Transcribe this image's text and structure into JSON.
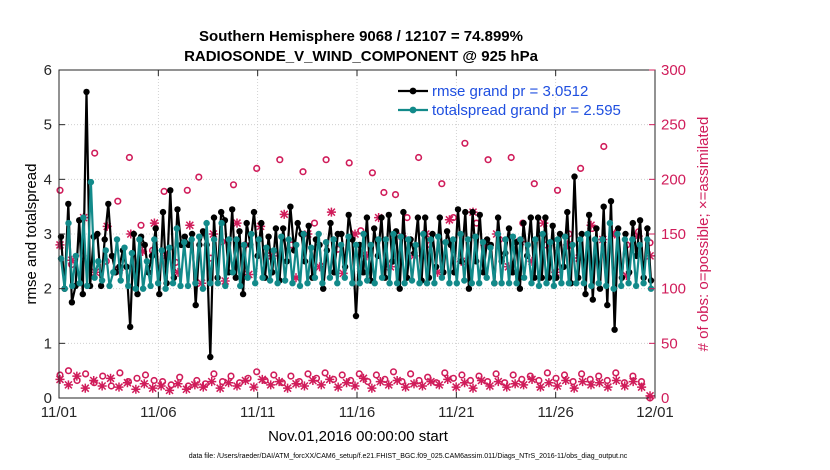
{
  "chart_data": {
    "type": "line",
    "title": "Southern Hemisphere 9068 / 12107 = 74.899%",
    "subtitle": "RADIOSONDE_V_WIND_COMPONENT @ 925 hPa",
    "xlabel": "Nov.01,2016 00:00:00 start",
    "ylabel": "rmse and totalspread",
    "y2label": "# of obs: o=possible; ×=assimilated",
    "footer": "data file: /Users/raeder/DAI/ATM_forcXX/CAM6_setup/f.e21.FHIST_BGC.f09_025.CAM6assim.011/Diags_NTrS_2016-11/obs_diag_output.nc",
    "x_range_days": [
      0,
      30
    ],
    "x_ticks": [
      0,
      5,
      10,
      15,
      20,
      25,
      30
    ],
    "x_tick_labels": [
      "11/01",
      "11/06",
      "11/11",
      "11/16",
      "11/21",
      "11/26",
      "12/01"
    ],
    "ylim": [
      0,
      6
    ],
    "y_ticks": [
      0,
      1,
      2,
      3,
      4,
      5,
      6
    ],
    "y2lim": [
      0,
      300
    ],
    "y2_ticks": [
      0,
      50,
      100,
      150,
      200,
      250,
      300
    ],
    "legend_position": "top-right",
    "colors": {
      "rmse": "#000000",
      "spread": "#128a8a",
      "obs": "#d01c5a"
    },
    "series": [
      {
        "name": "rmse",
        "legend": "rmse grand pr = 3.0512",
        "axis": "left",
        "values": [
          2.95,
          2.0,
          3.55,
          1.75,
          2.05,
          3.25,
          1.9,
          5.6,
          2.05,
          2.95,
          3.0,
          2.05,
          2.9,
          3.55,
          2.6,
          2.3,
          2.4,
          2.7,
          2.4,
          1.3,
          3.0,
          1.9,
          2.95,
          2.8,
          2.3,
          2.6,
          3.1,
          1.9,
          3.4,
          2.1,
          3.8,
          2.2,
          3.45,
          2.8,
          2.95,
          2.8,
          3.0,
          1.7,
          2.8,
          3.05,
          2.8,
          0.75,
          3.3,
          2.2,
          3.4,
          3.25,
          2.3,
          3.45,
          2.2,
          3.05,
          1.9,
          3.2,
          2.8,
          3.4,
          2.6,
          3.2,
          2.2,
          2.95,
          2.3,
          3.1,
          2.15,
          3.1,
          2.5,
          3.5,
          2.7,
          3.2,
          3.0,
          2.5,
          3.15,
          2.2,
          2.9,
          2.8,
          2.0,
          2.7,
          3.2,
          2.3,
          3.0,
          3.0,
          2.4,
          3.35,
          2.9,
          1.5,
          2.8,
          2.3,
          3.3,
          2.15,
          3.1,
          2.6,
          3.3,
          2.2,
          3.35,
          2.5,
          3.05,
          2.0,
          3.4,
          2.2,
          2.9,
          2.65,
          3.3,
          2.15,
          3.3,
          2.2,
          3.0,
          2.4,
          3.3,
          2.3,
          3.05,
          2.8,
          2.3,
          3.45,
          2.5,
          3.4,
          2.0,
          3.4,
          2.5,
          3.35,
          2.3,
          2.9,
          2.8,
          2.1,
          3.3,
          2.5,
          2.65,
          3.1,
          2.3,
          2.85,
          2.0,
          3.2,
          2.6,
          3.3,
          2.2,
          3.3,
          2.2,
          3.3,
          2.2,
          3.15,
          2.2,
          3.0,
          2.4,
          3.4,
          2.1,
          4.05,
          2.2,
          3.0,
          1.9,
          3.35,
          1.8,
          3.1,
          2.0,
          3.5,
          1.7,
          3.6,
          1.25,
          3.1,
          2.2,
          3.0,
          2.3,
          3.2,
          2.6,
          3.25,
          2.2,
          3.1,
          2.15
        ]
      },
      {
        "name": "totalspread",
        "legend": "totalspread grand pr = 2.595",
        "axis": "left",
        "values": [
          2.55,
          2.0,
          3.2,
          2.05,
          2.6,
          2.1,
          3.3,
          2.05,
          3.95,
          2.2,
          2.5,
          2.15,
          2.7,
          2.05,
          2.3,
          2.9,
          2.15,
          2.75,
          2.05,
          2.65,
          2.0,
          2.9,
          2.0,
          2.5,
          2.05,
          2.9,
          2.1,
          2.7,
          2.0,
          2.75,
          2.1,
          3.1,
          2.05,
          2.85,
          2.05,
          2.9,
          2.1,
          2.95,
          2.0,
          3.2,
          2.1,
          2.9,
          2.1,
          3.2,
          2.05,
          2.9,
          2.3,
          2.9,
          2.05,
          2.8,
          2.2,
          3.0,
          2.1,
          2.9,
          2.2,
          2.75,
          2.15,
          2.7,
          2.1,
          2.95,
          2.15,
          2.9,
          2.1,
          2.8,
          2.05,
          3.0,
          2.1,
          2.75,
          2.2,
          3.0,
          2.1,
          2.85,
          2.2,
          2.9,
          2.1,
          2.8,
          2.2,
          2.95,
          2.1,
          2.8,
          2.1,
          3.0,
          2.15,
          2.8,
          2.1,
          2.9,
          2.2,
          2.9,
          2.1,
          3.0,
          2.1,
          2.95,
          2.1,
          2.9,
          2.15,
          2.8,
          2.1,
          3.0,
          2.1,
          2.9,
          2.1,
          2.95,
          2.2,
          2.85,
          2.1,
          2.9,
          2.1,
          3.0,
          2.15,
          2.9,
          2.1,
          2.95,
          2.1,
          2.85,
          2.2,
          2.75,
          2.1,
          3.0,
          2.1,
          2.9,
          2.1,
          2.95,
          2.1,
          2.9,
          2.2,
          2.8,
          2.1,
          2.9,
          2.05,
          3.0,
          2.1,
          2.85,
          2.05,
          2.9,
          2.1,
          2.95,
          2.1,
          2.8,
          2.1,
          2.9,
          2.1,
          3.0,
          2.05,
          2.9,
          2.1,
          2.9,
          2.05,
          3.2,
          2.0,
          3.0,
          2.05,
          2.9,
          2.1,
          2.9,
          2.05,
          2.8,
          2.1,
          2.9,
          2.0
        ]
      },
      {
        "name": "obs possible (large counts)",
        "axis": "right",
        "marker": "o",
        "values": [
          190,
          122,
          130,
          224,
          125,
          180,
          220,
          158,
          135,
          189,
          124,
          190,
          202,
          128,
          143,
          195,
          140,
          210,
          130,
          218,
          140,
          207,
          160,
          218,
          136,
          215,
          153,
          206,
          188,
          186,
          165,
          220,
          140,
          196,
          165,
          233,
          160,
          218,
          145,
          220,
          160,
          196,
          140,
          190,
          150,
          210,
          155,
          230,
          150,
          140,
          152,
          142
        ]
      },
      {
        "name": "obs assimilated (large counts)",
        "axis": "right",
        "marker": "x",
        "values": [
          140,
          126,
          165,
          115,
          157,
          117,
          150,
          134,
          160,
          130,
          115,
          158,
          105,
          150,
          107,
          160,
          113,
          157,
          130,
          168,
          110,
          150,
          120,
          170,
          114,
          150,
          130,
          165,
          120,
          148,
          130,
          150,
          115,
          163,
          125,
          170,
          140,
          150,
          120,
          143,
          125,
          160,
          115,
          140,
          128,
          158,
          145,
          150,
          112,
          148,
          130
        ]
      },
      {
        "name": "obs possible (small counts)",
        "axis": "right",
        "marker": "o",
        "values": [
          21,
          25,
          16,
          22,
          14,
          20,
          11,
          23,
          15,
          18,
          21,
          16,
          15,
          12,
          19,
          11,
          16,
          13,
          22,
          15,
          20,
          14,
          18,
          24,
          16,
          21,
          14,
          20,
          15,
          22,
          18,
          23,
          17,
          21,
          16,
          22,
          15,
          21,
          17,
          24,
          15,
          22,
          16,
          19,
          14,
          23,
          18,
          21,
          16,
          20,
          15,
          22,
          14,
          21,
          17,
          20,
          16,
          23,
          18,
          21,
          15,
          22,
          17,
          20,
          16,
          23,
          14,
          20,
          15,
          0
        ]
      },
      {
        "name": "obs assimilated (small counts)",
        "axis": "right",
        "marker": "x",
        "values": [
          17,
          12,
          20,
          9,
          16,
          11,
          18,
          10,
          14,
          8,
          13,
          9,
          11,
          7,
          13,
          8,
          12,
          10,
          15,
          9,
          14,
          11,
          16,
          10,
          17,
          12,
          15,
          9,
          13,
          11,
          16,
          12,
          17,
          10,
          14,
          11,
          18,
          9,
          15,
          12,
          16,
          10,
          13,
          11,
          15,
          12,
          17,
          10,
          14,
          9,
          16,
          11,
          15,
          10,
          13,
          12,
          17,
          10,
          14,
          11,
          16,
          9,
          15,
          12,
          14,
          10,
          16,
          11,
          15,
          10,
          2
        ]
      }
    ]
  }
}
